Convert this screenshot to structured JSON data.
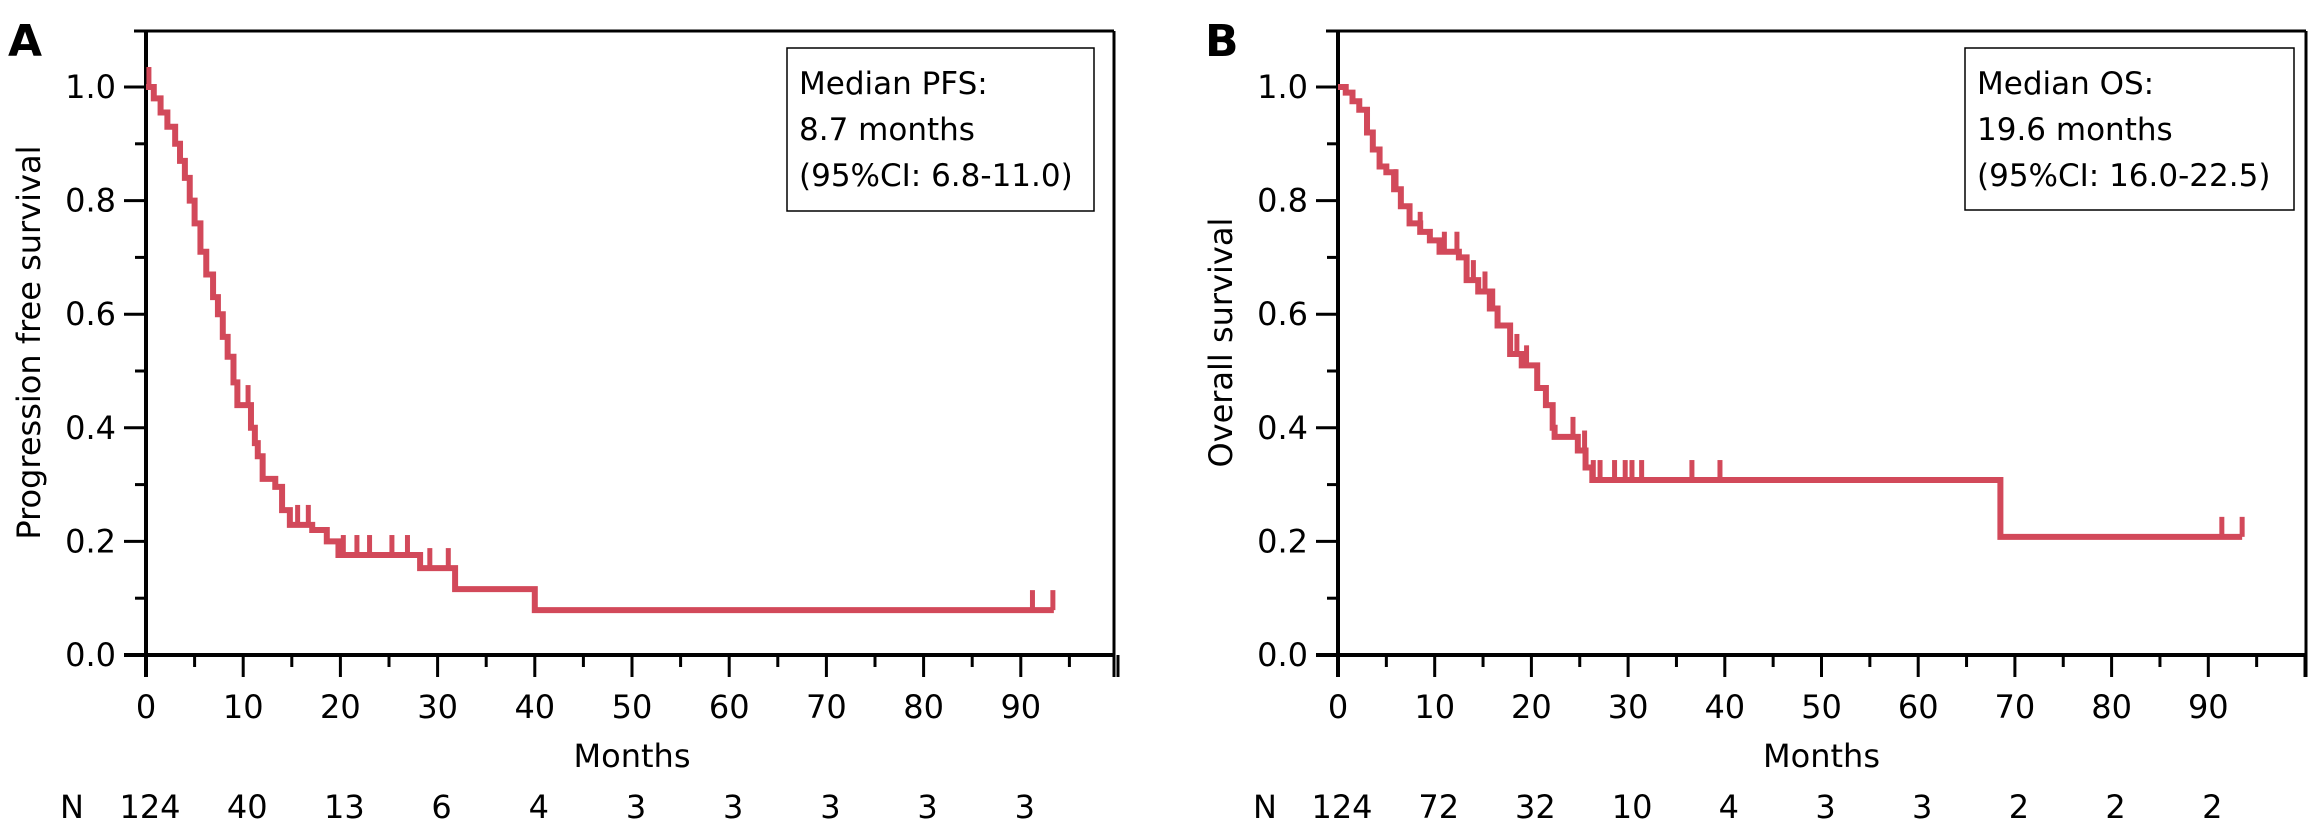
{
  "chart_data": [
    {
      "panel": "A",
      "type": "line",
      "subtype": "kaplan-meier",
      "title": "",
      "xlabel": "Months",
      "ylabel": "Progression free survival",
      "xlim": [
        0,
        100
      ],
      "ylim": [
        0,
        1.1
      ],
      "x_ticks": [
        "0",
        "10",
        "20",
        "30",
        "40",
        "50",
        "60",
        "70",
        "80",
        "90"
      ],
      "x_tick_values": [
        0,
        10,
        20,
        30,
        40,
        50,
        60,
        70,
        80,
        90
      ],
      "x_minor_step": 5,
      "y_ticks": [
        "0.0",
        "0.2",
        "0.4",
        "0.6",
        "0.8",
        "1.0"
      ],
      "y_tick_values": [
        0,
        0.2,
        0.4,
        0.6,
        0.8,
        1.0
      ],
      "y_minor_step": 0.1,
      "grid": false,
      "line_color": "#d2495a",
      "legend": {
        "placement": "top-right",
        "lines": [
          "Median PFS:",
          "8.7 months",
          "(95%CI: 6.8-11.0)"
        ]
      },
      "risk_table": {
        "label": "N",
        "times": [
          0,
          10,
          20,
          30,
          40,
          50,
          60,
          70,
          80,
          90
        ],
        "values": [
          "124",
          "40",
          "13",
          "6",
          "4",
          "3",
          "3",
          "3",
          "3",
          "3"
        ]
      },
      "steps": [
        [
          0,
          1.0
        ],
        [
          0.8,
          0.98
        ],
        [
          1.5,
          0.955
        ],
        [
          2.2,
          0.93
        ],
        [
          3.0,
          0.9
        ],
        [
          3.5,
          0.87
        ],
        [
          4.0,
          0.84
        ],
        [
          4.5,
          0.8
        ],
        [
          5.0,
          0.76
        ],
        [
          5.6,
          0.71
        ],
        [
          6.2,
          0.67
        ],
        [
          6.9,
          0.63
        ],
        [
          7.4,
          0.6
        ],
        [
          7.9,
          0.56
        ],
        [
          8.4,
          0.525
        ],
        [
          9.0,
          0.48
        ],
        [
          9.4,
          0.44
        ],
        [
          10.8,
          0.4
        ],
        [
          11.2,
          0.373
        ],
        [
          11.5,
          0.35
        ],
        [
          12.0,
          0.31
        ],
        [
          13.3,
          0.296
        ],
        [
          14.0,
          0.255
        ],
        [
          14.8,
          0.229
        ],
        [
          17.1,
          0.22
        ],
        [
          18.6,
          0.2
        ],
        [
          19.8,
          0.176
        ],
        [
          28.2,
          0.153
        ],
        [
          31.8,
          0.116
        ],
        [
          40.0,
          0.079
        ]
      ],
      "end_time": 93.4,
      "censored": [
        0.3,
        10.5,
        15.6,
        16.7,
        20.3,
        21.7,
        23.0,
        25.3,
        26.9,
        29.2,
        31.1,
        91.2,
        93.3
      ]
    },
    {
      "panel": "B",
      "type": "line",
      "subtype": "kaplan-meier",
      "title": "",
      "xlabel": "Months",
      "ylabel": "Overall survival",
      "xlim": [
        0,
        100
      ],
      "ylim": [
        0,
        1.1
      ],
      "x_ticks": [
        "0",
        "10",
        "20",
        "30",
        "40",
        "50",
        "60",
        "70",
        "80",
        "90"
      ],
      "x_tick_values": [
        0,
        10,
        20,
        30,
        40,
        50,
        60,
        70,
        80,
        90
      ],
      "x_minor_step": 5,
      "y_ticks": [
        "0.0",
        "0.2",
        "0.4",
        "0.6",
        "0.8",
        "1.0"
      ],
      "y_tick_values": [
        0,
        0.2,
        0.4,
        0.6,
        0.8,
        1.0
      ],
      "y_minor_step": 0.1,
      "grid": false,
      "line_color": "#d2495a",
      "legend": {
        "placement": "top-right",
        "lines": [
          "Median OS:",
          "19.6 months",
          "(95%CI: 16.0-22.5)"
        ]
      },
      "risk_table": {
        "label": "N",
        "times": [
          0,
          10,
          20,
          30,
          40,
          50,
          60,
          70,
          80,
          90
        ],
        "values": [
          "124",
          "72",
          "32",
          "10",
          "4",
          "3",
          "3",
          "2",
          "2",
          "2"
        ]
      },
      "steps": [
        [
          0,
          1.0
        ],
        [
          0.8,
          0.99
        ],
        [
          1.5,
          0.975
        ],
        [
          2.2,
          0.96
        ],
        [
          3.0,
          0.92
        ],
        [
          3.6,
          0.89
        ],
        [
          4.3,
          0.86
        ],
        [
          5.0,
          0.85
        ],
        [
          5.8,
          0.82
        ],
        [
          6.5,
          0.79
        ],
        [
          7.4,
          0.76
        ],
        [
          8.5,
          0.745
        ],
        [
          9.5,
          0.73
        ],
        [
          10.5,
          0.71
        ],
        [
          12.5,
          0.7
        ],
        [
          13.3,
          0.66
        ],
        [
          14.5,
          0.64
        ],
        [
          15.7,
          0.61
        ],
        [
          16.5,
          0.58
        ],
        [
          17.8,
          0.53
        ],
        [
          19.0,
          0.51
        ],
        [
          20.6,
          0.47
        ],
        [
          21.5,
          0.44
        ],
        [
          22.2,
          0.4
        ],
        [
          22.4,
          0.384
        ],
        [
          24.8,
          0.36
        ],
        [
          25.6,
          0.33
        ],
        [
          26.3,
          0.308
        ],
        [
          68.5,
          0.208
        ]
      ],
      "end_time": 93.5,
      "censored": [
        6.0,
        8.5,
        11.0,
        12.3,
        14.0,
        15.2,
        16.0,
        18.5,
        19.5,
        24.3,
        25.5,
        26.4,
        27.1,
        28.6,
        29.7,
        30.4,
        31.4,
        36.6,
        39.5,
        91.4,
        93.5
      ]
    }
  ],
  "panels": {
    "a": {
      "letter": "A"
    },
    "b": {
      "letter": "B"
    }
  }
}
